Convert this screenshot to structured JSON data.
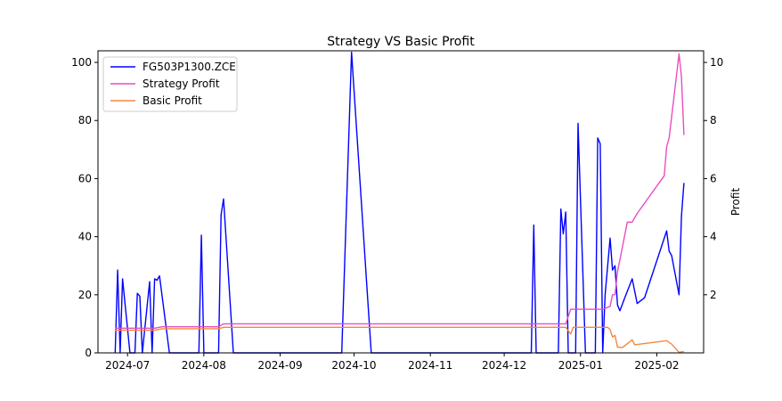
{
  "chart_data": {
    "type": "line",
    "title": "Strategy VS Basic Profit",
    "xlabel": "",
    "ylabel_left": "",
    "ylabel_right": "Profit",
    "x_ticks": [
      "2024-07",
      "2024-08",
      "2024-09",
      "2024-10",
      "2024-11",
      "2024-12",
      "2025-01",
      "2025-02"
    ],
    "y_left_ticks": [
      "0",
      "20",
      "40",
      "60",
      "80",
      "100"
    ],
    "y_right_ticks": [
      "2",
      "4",
      "6",
      "8",
      "10"
    ],
    "ylim_left": [
      0,
      104
    ],
    "ylim_right": [
      0.0,
      10.4
    ],
    "xlim": [
      "2024-06-19",
      "2025-02-20"
    ],
    "legend_position": "upper-left",
    "series": [
      {
        "name": "FG503P1300.ZCE",
        "axis": "left",
        "color": "#0000ff",
        "points": [
          [
            "2024-06-26",
            0
          ],
          [
            "2024-06-27",
            28.5
          ],
          [
            "2024-06-28",
            0
          ],
          [
            "2024-06-29",
            25.5
          ],
          [
            "2024-07-02",
            0
          ],
          [
            "2024-07-04",
            0
          ],
          [
            "2024-07-05",
            20.5
          ],
          [
            "2024-07-06",
            19.5
          ],
          [
            "2024-07-07",
            0
          ],
          [
            "2024-07-10",
            24.5
          ],
          [
            "2024-07-11",
            0
          ],
          [
            "2024-07-12",
            25.5
          ],
          [
            "2024-07-13",
            25.0
          ],
          [
            "2024-07-14",
            26.5
          ],
          [
            "2024-07-18",
            0
          ],
          [
            "2024-07-30",
            0
          ],
          [
            "2024-07-31",
            40.5
          ],
          [
            "2024-08-01",
            0
          ],
          [
            "2024-08-07",
            0
          ],
          [
            "2024-08-08",
            47.5
          ],
          [
            "2024-08-09",
            53.0
          ],
          [
            "2024-08-13",
            0
          ],
          [
            "2024-09-26",
            0
          ],
          [
            "2024-09-30",
            103.5
          ],
          [
            "2024-10-08",
            0
          ],
          [
            "2024-12-12",
            0
          ],
          [
            "2024-12-13",
            44.0
          ],
          [
            "2024-12-14",
            0
          ],
          [
            "2024-12-23",
            0
          ],
          [
            "2024-12-24",
            49.5
          ],
          [
            "2024-12-25",
            41.0
          ],
          [
            "2024-12-26",
            48.5
          ],
          [
            "2024-12-27",
            0
          ],
          [
            "2024-12-30",
            0
          ],
          [
            "2024-12-31",
            79.0
          ],
          [
            "2025-01-03",
            0
          ],
          [
            "2025-01-07",
            0
          ],
          [
            "2025-01-08",
            74.0
          ],
          [
            "2025-01-09",
            72.0
          ],
          [
            "2025-01-10",
            0
          ],
          [
            "2025-01-11",
            20.0
          ],
          [
            "2025-01-13",
            39.5
          ],
          [
            "2025-01-14",
            28.5
          ],
          [
            "2025-01-15",
            30.0
          ],
          [
            "2025-01-16",
            16.5
          ],
          [
            "2025-01-17",
            14.5
          ],
          [
            "2025-01-19",
            19.0
          ],
          [
            "2025-01-22",
            25.5
          ],
          [
            "2025-01-24",
            17.0
          ],
          [
            "2025-01-27",
            19.0
          ],
          [
            "2025-02-05",
            42.0
          ],
          [
            "2025-02-06",
            35.0
          ],
          [
            "2025-02-07",
            33.5
          ],
          [
            "2025-02-10",
            20.0
          ],
          [
            "2025-02-11",
            47.0
          ],
          [
            "2025-02-12",
            58.5
          ]
        ]
      },
      {
        "name": "Strategy Profit",
        "axis": "right",
        "color": "#e74fbf",
        "points": [
          [
            "2024-06-26",
            0.85
          ],
          [
            "2024-07-12",
            0.85
          ],
          [
            "2024-07-15",
            0.9
          ],
          [
            "2024-08-07",
            0.9
          ],
          [
            "2024-08-09",
            1.0
          ],
          [
            "2024-12-26",
            1.0
          ],
          [
            "2024-12-28",
            1.5
          ],
          [
            "2025-01-10",
            1.5
          ],
          [
            "2025-01-13",
            1.6
          ],
          [
            "2025-01-14",
            2.0
          ],
          [
            "2025-01-15",
            2.0
          ],
          [
            "2025-01-16",
            2.8
          ],
          [
            "2025-01-17",
            3.2
          ],
          [
            "2025-01-20",
            4.5
          ],
          [
            "2025-01-22",
            4.5
          ],
          [
            "2025-01-24",
            4.8
          ],
          [
            "2025-02-04",
            6.1
          ],
          [
            "2025-02-05",
            7.1
          ],
          [
            "2025-02-06",
            7.4
          ],
          [
            "2025-02-10",
            10.3
          ],
          [
            "2025-02-11",
            9.5
          ],
          [
            "2025-02-12",
            7.5
          ]
        ]
      },
      {
        "name": "Basic Profit",
        "axis": "right",
        "color": "#f58742",
        "points": [
          [
            "2024-06-26",
            0.78
          ],
          [
            "2024-07-12",
            0.78
          ],
          [
            "2024-07-15",
            0.83
          ],
          [
            "2024-08-07",
            0.83
          ],
          [
            "2024-08-09",
            0.88
          ],
          [
            "2024-12-26",
            0.88
          ],
          [
            "2024-12-28",
            0.65
          ],
          [
            "2024-12-29",
            0.88
          ],
          [
            "2025-01-12",
            0.88
          ],
          [
            "2025-01-13",
            0.8
          ],
          [
            "2025-01-14",
            0.55
          ],
          [
            "2025-01-15",
            0.6
          ],
          [
            "2025-01-16",
            0.2
          ],
          [
            "2025-01-18",
            0.18
          ],
          [
            "2025-01-22",
            0.45
          ],
          [
            "2025-01-23",
            0.28
          ],
          [
            "2025-02-05",
            0.42
          ],
          [
            "2025-02-07",
            0.3
          ],
          [
            "2025-02-10",
            0.02
          ],
          [
            "2025-02-12",
            0.05
          ]
        ]
      }
    ]
  }
}
